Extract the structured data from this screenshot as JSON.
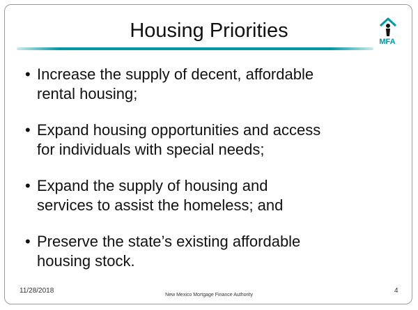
{
  "header": {
    "title": "Housing Priorities",
    "logo_text": "MFA"
  },
  "bullets": [
    [
      "Increase the supply of decent, affordable",
      "rental housing;"
    ],
    [
      "Expand housing opportunities and access",
      "for individuals with special needs;"
    ],
    [
      "Expand the supply of housing and",
      "services to assist the homeless; and"
    ],
    [
      "Preserve the state’s existing affordable",
      "housing stock."
    ]
  ],
  "footer": {
    "date": "11/28/2018",
    "organization": "New Mexico Mortgage Finance Authority",
    "page": "4"
  }
}
